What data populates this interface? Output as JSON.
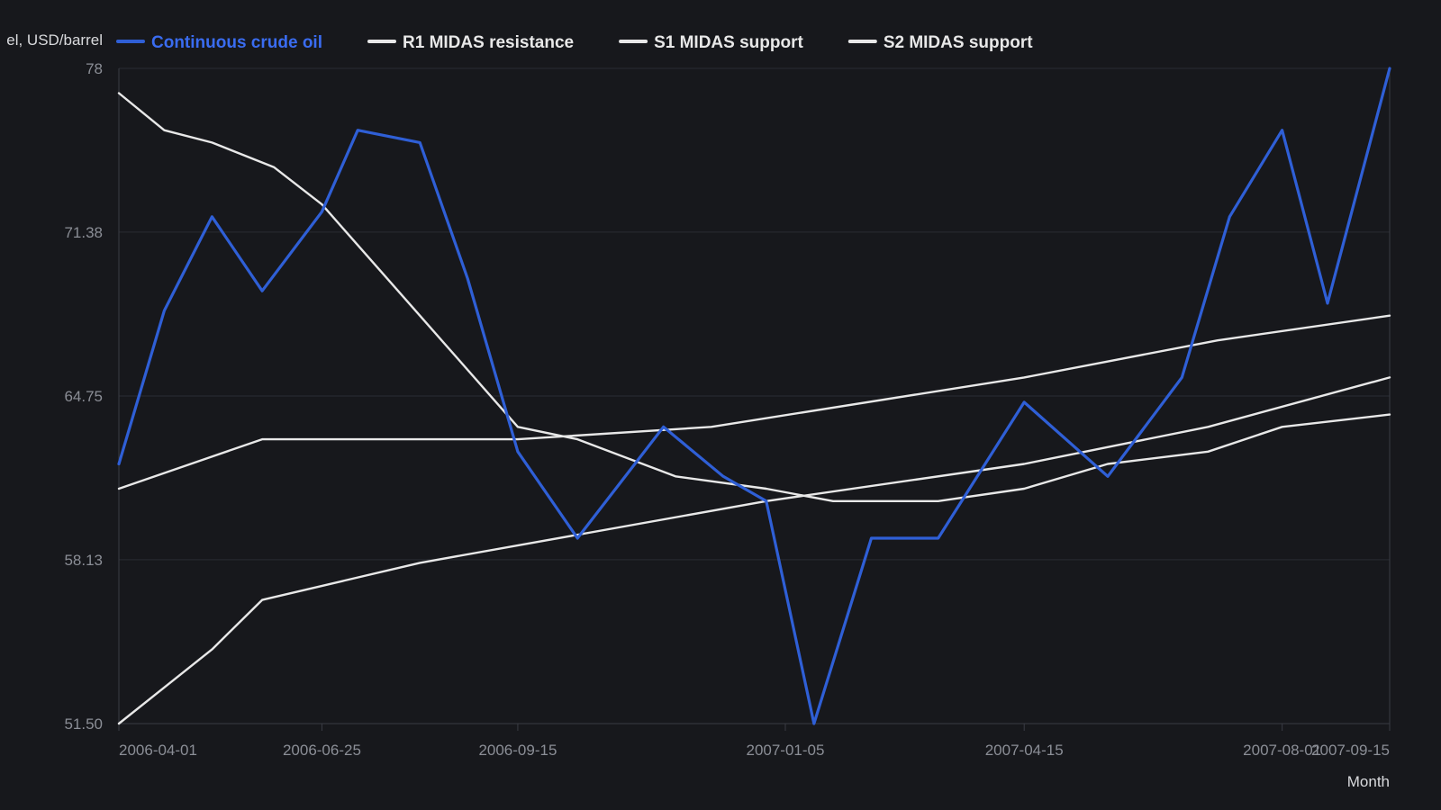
{
  "chart_data": {
    "type": "line",
    "title": "",
    "xlabel": "Month",
    "ylabel": "el, USD/barrel",
    "ylim": [
      51.5,
      78
    ],
    "yticks": [
      "51.50",
      "58.13",
      "64.75",
      "71.38",
      "78"
    ],
    "grid": true,
    "legend_position": "top",
    "x_range": [
      "2006-04-01",
      "2007-09-15"
    ],
    "x_tick_labels": [
      "2006-04-01",
      "2006-06-25",
      "2006-09-15",
      "2007-01-05",
      "2007-04-15",
      "2007-08-01",
      "2007-09-15"
    ],
    "series": [
      {
        "name": "Continuous crude oil",
        "color": "#2f5fd6",
        "points": [
          [
            "2006-04-01",
            62.0
          ],
          [
            "2006-04-20",
            68.2
          ],
          [
            "2006-05-10",
            72.0
          ],
          [
            "2006-05-31",
            69.0
          ],
          [
            "2006-06-25",
            72.2
          ],
          [
            "2006-07-10",
            75.5
          ],
          [
            "2006-08-05",
            75.0
          ],
          [
            "2006-08-25",
            69.5
          ],
          [
            "2006-09-15",
            62.5
          ],
          [
            "2006-10-10",
            59.0
          ],
          [
            "2006-11-15",
            63.5
          ],
          [
            "2006-12-10",
            61.5
          ],
          [
            "2006-12-28",
            60.5
          ],
          [
            "2007-01-17",
            51.5
          ],
          [
            "2007-02-10",
            59.0
          ],
          [
            "2007-03-10",
            59.0
          ],
          [
            "2007-04-15",
            64.5
          ],
          [
            "2007-05-20",
            61.5
          ],
          [
            "2007-06-20",
            65.5
          ],
          [
            "2007-07-10",
            72.0
          ],
          [
            "2007-08-01",
            75.5
          ],
          [
            "2007-08-20",
            68.5
          ],
          [
            "2007-09-15",
            78.0
          ]
        ]
      },
      {
        "name": "R1 MIDAS resistance",
        "color": "#e8e8e8",
        "points": [
          [
            "2006-04-01",
            77.0
          ],
          [
            "2006-04-20",
            75.5
          ],
          [
            "2006-05-10",
            75.0
          ],
          [
            "2006-06-05",
            74.0
          ],
          [
            "2006-06-25",
            72.5
          ],
          [
            "2006-08-05",
            68.0
          ],
          [
            "2006-09-15",
            63.5
          ],
          [
            "2006-10-10",
            63.0
          ],
          [
            "2006-11-20",
            61.5
          ],
          [
            "2006-12-28",
            61.0
          ],
          [
            "2007-01-25",
            60.5
          ],
          [
            "2007-03-10",
            60.5
          ],
          [
            "2007-04-15",
            61.0
          ],
          [
            "2007-05-20",
            62.0
          ],
          [
            "2007-07-01",
            62.5
          ],
          [
            "2007-08-01",
            63.5
          ],
          [
            "2007-09-15",
            64.0
          ]
        ]
      },
      {
        "name": "S1 MIDAS support",
        "color": "#e8e8e8",
        "points": [
          [
            "2006-04-01",
            61.0
          ],
          [
            "2006-05-31",
            63.0
          ],
          [
            "2006-09-15",
            63.0
          ],
          [
            "2006-12-05",
            63.5
          ],
          [
            "2007-04-15",
            65.5
          ],
          [
            "2007-07-05",
            67.0
          ],
          [
            "2007-09-15",
            68.0
          ]
        ]
      },
      {
        "name": "S2 MIDAS support",
        "color": "#e8e8e8",
        "points": [
          [
            "2006-04-01",
            51.5
          ],
          [
            "2006-05-10",
            54.5
          ],
          [
            "2006-05-31",
            56.5
          ],
          [
            "2006-08-05",
            58.0
          ],
          [
            "2006-12-28",
            60.5
          ],
          [
            "2007-04-15",
            62.0
          ],
          [
            "2007-07-01",
            63.5
          ],
          [
            "2007-09-15",
            65.5
          ]
        ]
      }
    ]
  }
}
